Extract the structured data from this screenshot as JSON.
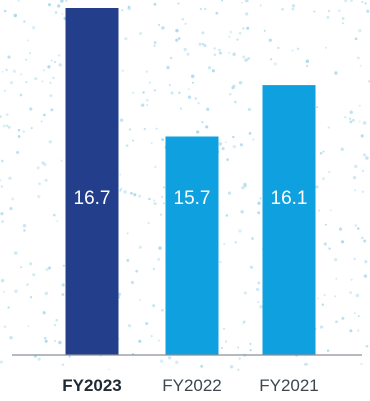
{
  "chart_data": {
    "type": "bar",
    "categories": [
      "FY2023",
      "FY2022",
      "FY2021"
    ],
    "values": [
      16.7,
      15.7,
      16.1
    ],
    "highlight_index": 0,
    "colors": {
      "highlight_bar": "#233f8c",
      "bar": "#0ea0df",
      "bar_label": "#ffffff",
      "highlight_tick": "#1f2a33",
      "tick": "#3d4750",
      "baseline": "#8a8f96",
      "dots": "#9fd4ea"
    }
  }
}
